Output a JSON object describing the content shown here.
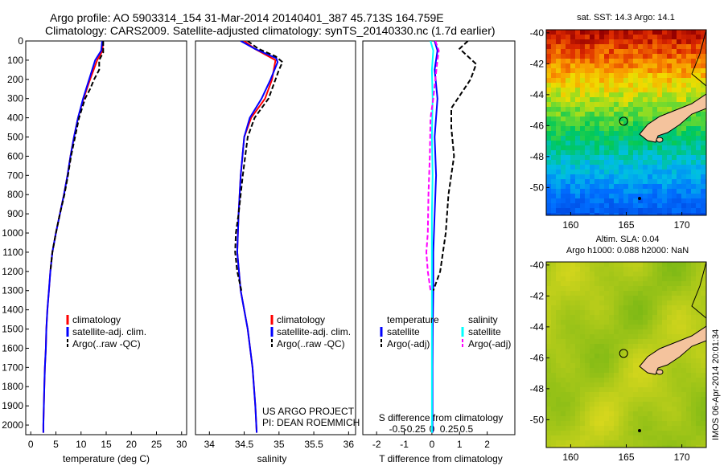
{
  "header": {
    "line1": "Argo profile: AO 5903314_154 31-Mar-2014 20140401_387 45.713S 164.759E",
    "line2": "Climatology: CARS2009. Satellite-adjusted climatology: synTS_20140330.nc (1.7d earlier)"
  },
  "colors": {
    "climatology": "#ff0000",
    "satellite": "#0000ff",
    "argo": "#000000",
    "sal_satellite": "#00ffff",
    "sal_argo": "#ff00ff",
    "land": "#f4c39d"
  },
  "chart_data": [
    {
      "type": "line",
      "xlabel": "temperature (deg C)",
      "ylim": [
        2050,
        0
      ],
      "xlim": [
        -1,
        31
      ],
      "xticks": [
        0,
        5,
        10,
        15,
        20,
        25,
        30
      ],
      "yticks": [
        0,
        100,
        200,
        300,
        400,
        500,
        600,
        700,
        800,
        900,
        1000,
        1100,
        1200,
        1300,
        1400,
        1500,
        1600,
        1700,
        1800,
        1900,
        2000
      ],
      "series": [
        {
          "name": "climatology",
          "color": "#ff0000",
          "style": "solid",
          "points": [
            [
              14.3,
              0
            ],
            [
              14.3,
              50
            ],
            [
              13.2,
              100
            ],
            [
              11.8,
              200
            ],
            [
              10.5,
              300
            ],
            [
              9.4,
              400
            ],
            [
              8.6,
              500
            ],
            [
              7.9,
              600
            ],
            [
              7.3,
              700
            ],
            [
              6.6,
              800
            ],
            [
              5.8,
              900
            ],
            [
              5.0,
              1000
            ],
            [
              4.3,
              1100
            ],
            [
              3.9,
              1200
            ],
            [
              3.6,
              1300
            ],
            [
              3.3,
              1400
            ],
            [
              3.1,
              1500
            ],
            [
              3.0,
              1600
            ],
            [
              2.8,
              1700
            ],
            [
              2.7,
              1800
            ],
            [
              2.6,
              1900
            ],
            [
              2.5,
              2000
            ],
            [
              2.5,
              2040
            ]
          ]
        },
        {
          "name": "satellite-adj. clim.",
          "color": "#0000ff",
          "style": "solid",
          "points": [
            [
              14.2,
              0
            ],
            [
              14.0,
              50
            ],
            [
              12.8,
              100
            ],
            [
              11.6,
              200
            ],
            [
              10.4,
              300
            ],
            [
              9.4,
              400
            ],
            [
              8.6,
              500
            ],
            [
              7.9,
              600
            ],
            [
              7.3,
              700
            ],
            [
              6.6,
              800
            ],
            [
              5.8,
              900
            ],
            [
              5.0,
              1000
            ],
            [
              4.3,
              1100
            ],
            [
              3.9,
              1200
            ],
            [
              3.6,
              1300
            ],
            [
              3.3,
              1400
            ],
            [
              3.1,
              1500
            ],
            [
              3.0,
              1600
            ],
            [
              2.8,
              1700
            ],
            [
              2.7,
              1800
            ],
            [
              2.6,
              1900
            ],
            [
              2.5,
              2000
            ],
            [
              2.5,
              2040
            ]
          ]
        },
        {
          "name": "Argo(..raw -QC)",
          "color": "#000000",
          "style": "dashed",
          "points": [
            [
              14.4,
              0
            ],
            [
              14.4,
              60
            ],
            [
              13.6,
              100
            ],
            [
              13.6,
              150
            ],
            [
              12.6,
              200
            ],
            [
              11.8,
              250
            ],
            [
              10.8,
              300
            ],
            [
              9.6,
              400
            ],
            [
              8.8,
              500
            ],
            [
              8.0,
              600
            ],
            [
              7.4,
              700
            ],
            [
              6.7,
              800
            ],
            [
              5.8,
              900
            ],
            [
              5.0,
              1000
            ],
            [
              4.3,
              1100
            ],
            [
              3.9,
              1200
            ]
          ]
        }
      ],
      "legend": {
        "position": "lower-middle",
        "entries": [
          "climatology",
          "satellite-adj. clim.",
          "Argo(..raw -QC)"
        ]
      }
    },
    {
      "type": "line",
      "xlabel": "salinity",
      "xlim": [
        33.8,
        36.1
      ],
      "ylim": [
        2050,
        0
      ],
      "xticks": [
        34,
        34.5,
        35,
        35.5,
        36
      ],
      "series": [
        {
          "name": "climatology",
          "color": "#ff0000",
          "style": "solid",
          "points": [
            [
              34.5,
              0
            ],
            [
              34.65,
              40
            ],
            [
              34.95,
              100
            ],
            [
              34.9,
              200
            ],
            [
              34.8,
              300
            ],
            [
              34.6,
              400
            ],
            [
              34.5,
              500
            ],
            [
              34.45,
              700
            ],
            [
              34.42,
              900
            ],
            [
              34.4,
              1100
            ],
            [
              34.45,
              1300
            ],
            [
              34.55,
              1500
            ],
            [
              34.62,
              1700
            ],
            [
              34.66,
              1900
            ],
            [
              34.68,
              2040
            ]
          ]
        },
        {
          "name": "satellite-adj. clim.",
          "color": "#0000ff",
          "style": "solid",
          "points": [
            [
              34.45,
              0
            ],
            [
              34.65,
              40
            ],
            [
              34.96,
              90
            ],
            [
              34.98,
              110
            ],
            [
              34.88,
              200
            ],
            [
              34.75,
              300
            ],
            [
              34.58,
              400
            ],
            [
              34.5,
              500
            ],
            [
              34.45,
              700
            ],
            [
              34.42,
              900
            ],
            [
              34.4,
              1100
            ],
            [
              34.45,
              1300
            ],
            [
              34.55,
              1500
            ],
            [
              34.62,
              1700
            ],
            [
              34.66,
              1900
            ],
            [
              34.68,
              2040
            ]
          ]
        },
        {
          "name": "Argo(..raw -QC)",
          "color": "#000000",
          "style": "dashed",
          "points": [
            [
              34.55,
              0
            ],
            [
              34.7,
              40
            ],
            [
              34.95,
              80
            ],
            [
              35.05,
              110
            ],
            [
              35.0,
              150
            ],
            [
              34.95,
              200
            ],
            [
              34.85,
              300
            ],
            [
              34.65,
              400
            ],
            [
              34.55,
              500
            ],
            [
              34.48,
              700
            ],
            [
              34.42,
              900
            ],
            [
              34.38,
              1000
            ],
            [
              34.37,
              1100
            ],
            [
              34.4,
              1200
            ],
            [
              34.46,
              1300
            ]
          ]
        }
      ],
      "legend": {
        "position": "lower-middle",
        "entries": [
          "climatology",
          "satellite-adj. clim.",
          "Argo(..raw -QC)"
        ]
      },
      "annotations": [
        "US ARGO PROJECT",
        "PI: DEAN ROEMMICH"
      ]
    },
    {
      "type": "line",
      "xlabel_bottom": "T difference from climatology",
      "xlabel_top": "S difference from climatology",
      "xlim_T": [
        -2.5,
        3.0
      ],
      "xticks_T": [
        -2,
        -1,
        0,
        1,
        2
      ],
      "xticks_S": [
        -0.5,
        -0.25,
        0,
        0.25,
        0.5
      ],
      "xticks_S_labels": [
        "-0.5",
        "-0.25",
        "0",
        "0.25",
        "0.5"
      ],
      "ylim": [
        2050,
        0
      ],
      "series": [
        {
          "name": "temperature satellite",
          "color": "#0000ff",
          "style": "solid",
          "axis": "T",
          "points": [
            [
              0.1,
              0
            ],
            [
              0.2,
              50
            ],
            [
              0.1,
              150
            ],
            [
              0.2,
              300
            ],
            [
              0.1,
              500
            ],
            [
              0.15,
              700
            ],
            [
              0.1,
              900
            ],
            [
              0.05,
              1100
            ],
            [
              0.05,
              1300
            ],
            [
              0.03,
              1500
            ],
            [
              0.02,
              1700
            ],
            [
              0.02,
              1900
            ],
            [
              0.02,
              2040
            ]
          ]
        },
        {
          "name": "temperature Argo(-adj)",
          "color": "#000000",
          "style": "dashed",
          "axis": "T",
          "points": [
            [
              1.3,
              0
            ],
            [
              1.0,
              40
            ],
            [
              1.6,
              120
            ],
            [
              1.4,
              200
            ],
            [
              0.7,
              350
            ],
            [
              0.7,
              450
            ],
            [
              0.8,
              600
            ],
            [
              0.6,
              800
            ],
            [
              0.5,
              1000
            ],
            [
              0.3,
              1200
            ],
            [
              0.05,
              1300
            ]
          ]
        },
        {
          "name": "salinity satellite",
          "color": "#00ffff",
          "style": "solid",
          "axis": "S",
          "points": [
            [
              -0.02,
              0
            ],
            [
              0.02,
              50
            ],
            [
              0.0,
              150
            ],
            [
              0.01,
              300
            ],
            [
              0.0,
              500
            ],
            [
              0.01,
              700
            ],
            [
              0.0,
              900
            ],
            [
              0.0,
              1100
            ],
            [
              0.0,
              1300
            ],
            [
              0.0,
              1500
            ],
            [
              0.0,
              1700
            ],
            [
              0.0,
              1900
            ],
            [
              0.0,
              2040
            ]
          ]
        },
        {
          "name": "salinity Argo(-adj)",
          "color": "#ff00ff",
          "style": "dashed",
          "axis": "S",
          "points": [
            [
              0.05,
              0
            ],
            [
              0.1,
              50
            ],
            [
              0.08,
              100
            ],
            [
              0.05,
              200
            ],
            [
              0.02,
              300
            ],
            [
              -0.02,
              400
            ],
            [
              -0.03,
              600
            ],
            [
              -0.05,
              800
            ],
            [
              -0.06,
              1000
            ],
            [
              -0.08,
              1100
            ],
            [
              -0.06,
              1200
            ],
            [
              -0.02,
              1300
            ]
          ]
        }
      ],
      "legend": {
        "temperature": [
          "satellite",
          "Argo(-adj)"
        ],
        "salinity": [
          "satellite",
          "Argo(-adj)"
        ]
      }
    },
    {
      "type": "heatmap",
      "title": "sat. SST: 14.3 Argo: 14.1",
      "xticks": [
        160,
        165,
        170
      ],
      "yticks": [
        -40,
        -42,
        -44,
        -46,
        -48,
        -50
      ],
      "xlim": [
        157.8,
        172.2
      ],
      "ylim": [
        -51.8,
        -39.8
      ],
      "marker": {
        "lon": 164.759,
        "lat": -45.713
      }
    },
    {
      "type": "heatmap",
      "title_line1": "Altim. SLA: 0.04",
      "title_line2": "Argo h1000: 0.088 h2000: NaN",
      "xticks": [
        160,
        165,
        170
      ],
      "yticks": [
        -40,
        -42,
        -44,
        -46,
        -48,
        -50
      ],
      "xlim": [
        157.8,
        172.2
      ],
      "ylim": [
        -51.8,
        -39.8
      ],
      "marker": {
        "lon": 164.759,
        "lat": -45.713
      }
    }
  ],
  "legend_labels": {
    "climatology": "climatology",
    "satellite_adj": "satellite-adj. clim.",
    "argo_raw": "Argo(..raw -QC)",
    "temperature_title": "temperature",
    "salinity_title": "salinity",
    "satellite": "satellite",
    "argo_adj": "Argo(-adj)"
  },
  "credits": {
    "project": "US ARGO PROJECT",
    "pi": "PI: DEAN ROEMMICH",
    "watermark": "IMOS 06-Apr-2014 20:01:34"
  }
}
